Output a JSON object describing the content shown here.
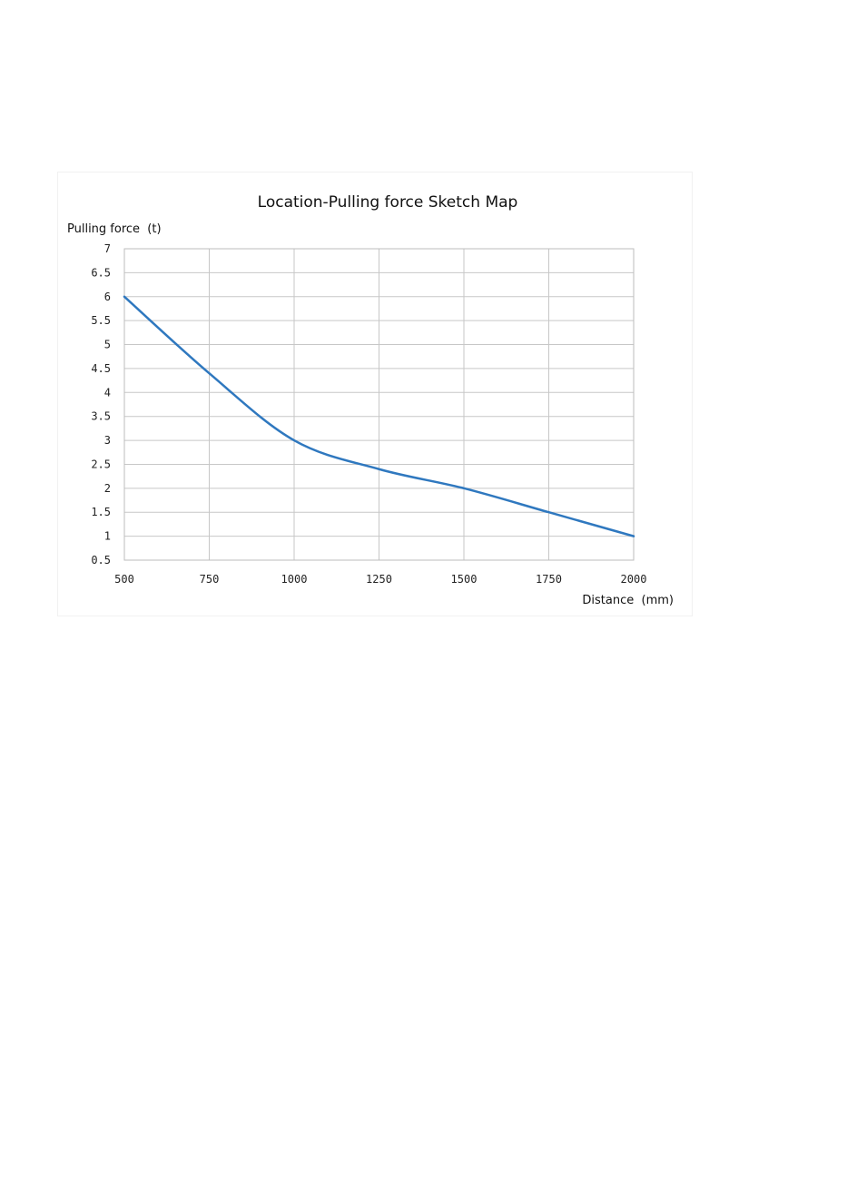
{
  "chart_data": {
    "type": "line",
    "title": "Location-Pulling force  Sketch Map",
    "xlabel": "Distance  (mm)",
    "ylabel": "Pulling force  (t)",
    "xlim": [
      500,
      2000
    ],
    "ylim": [
      0.5,
      7
    ],
    "x_ticks": [
      500,
      750,
      1000,
      1250,
      1500,
      1750,
      2000
    ],
    "x_tick_labels": [
      "500",
      "750",
      "1000",
      "1250",
      "1500",
      "1750",
      "2000"
    ],
    "y_ticks": [
      0.5,
      1,
      1.5,
      2,
      2.5,
      3,
      3.5,
      4,
      4.5,
      5,
      5.5,
      6,
      6.5,
      7
    ],
    "y_tick_labels": [
      "0.5",
      "1",
      "1.5",
      "2",
      "2.5",
      "3",
      "3.5",
      "4",
      "4.5",
      "5",
      "5.5",
      "6",
      "6.5",
      "7"
    ],
    "grid": true,
    "series": [
      {
        "color": "#2f78bf",
        "x": [
          500,
          750,
          1000,
          1250,
          1500,
          1750,
          2000
        ],
        "y": [
          6,
          4.4,
          3,
          2.4,
          2,
          1.5,
          1
        ]
      }
    ]
  }
}
